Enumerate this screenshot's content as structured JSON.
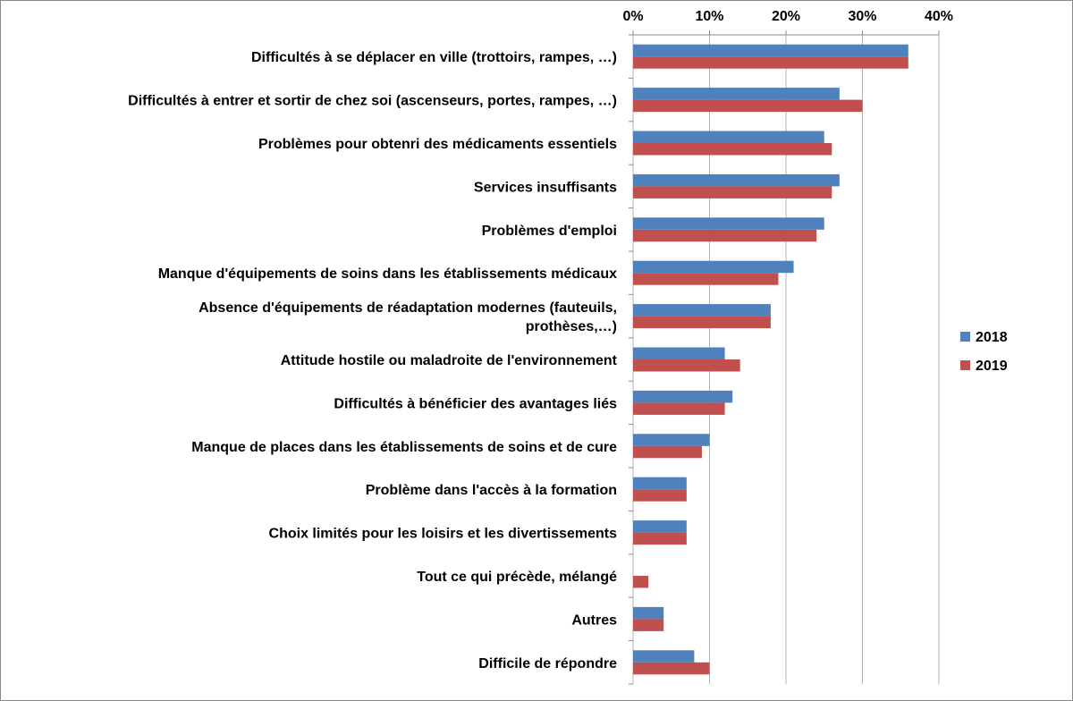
{
  "chart_data": {
    "type": "bar",
    "orientation": "horizontal",
    "xlim": [
      0,
      40
    ],
    "ticks": [
      "0%",
      "10%",
      "20%",
      "30%",
      "40%"
    ],
    "grid": true,
    "legend_position": "right",
    "categories": [
      [
        "Difficultés à se déplacer en ville (trottoirs, rampes, …)"
      ],
      [
        "Difficultés à entrer et sortir de chez soi (ascenseurs, portes, rampes, …)"
      ],
      [
        "Problèmes pour obtenri des médicaments essentiels"
      ],
      [
        "Services insuffisants"
      ],
      [
        "Problèmes d'emploi"
      ],
      [
        "Manque d'équipements de soins dans les établissements médicaux"
      ],
      [
        "Absence d'équipements de réadaptation modernes (fauteuils,",
        "prothèses,…)"
      ],
      [
        "Attitude hostile ou maladroite de l'environnement"
      ],
      [
        "Difficultés à bénéficier des avantages liés"
      ],
      [
        "Manque de places dans les établissements de soins et de cure"
      ],
      [
        "Problème dans l'accès à la formation"
      ],
      [
        "Choix limités pour les loisirs et les divertissements"
      ],
      [
        "Tout ce qui précède, mélangé"
      ],
      [
        "Autres"
      ],
      [
        "Difficile de répondre"
      ]
    ],
    "series": [
      {
        "name": "2018",
        "color": "#4F81BD",
        "values": [
          36,
          27,
          25,
          27,
          25,
          21,
          18,
          12,
          13,
          10,
          7,
          7,
          0,
          4,
          8
        ]
      },
      {
        "name": "2019",
        "color": "#C0504D",
        "values": [
          36,
          30,
          26,
          26,
          24,
          19,
          18,
          14,
          12,
          9,
          7,
          7,
          2,
          4,
          10
        ]
      }
    ]
  }
}
